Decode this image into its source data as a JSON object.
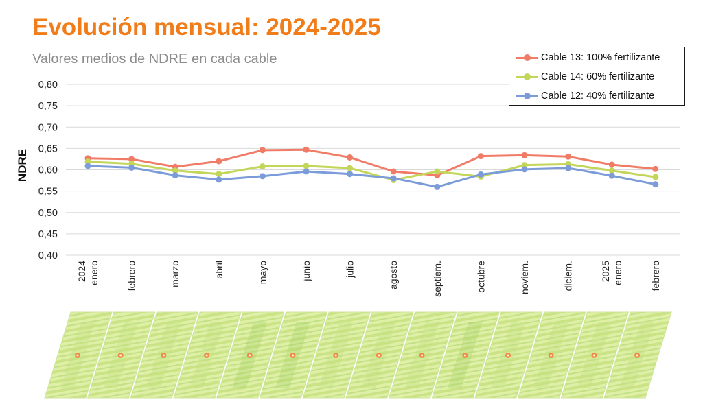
{
  "title": "Evolución mensual: 2024-2025",
  "subtitle": "Valores medios de NDRE en cada cable",
  "colors": {
    "title": "#f07d1a",
    "subtitle": "#8c8c8c",
    "gridline": "#d9d9d9",
    "field_light": "#dff0a6",
    "field_mid": "#c3e07e",
    "field_dark": "#a6d268",
    "sensor_point": "#f08a4b"
  },
  "icons": [
    "field-plot-image",
    "sensor-point-icon"
  ],
  "chart_data": {
    "type": "line",
    "ylabel": "NDRE",
    "xlabel": "",
    "ylim": [
      0.4,
      0.8
    ],
    "yticks": [
      "0,80",
      "0,75",
      "0,70",
      "0,65",
      "0,60",
      "0,55",
      "0,50",
      "0,45",
      "0,40"
    ],
    "grid": true,
    "legend_position": "top-right",
    "categories": [
      [
        "2024",
        "enero"
      ],
      [
        "febrero"
      ],
      [
        "marzo"
      ],
      [
        "abril"
      ],
      [
        "mayo"
      ],
      [
        "junio"
      ],
      [
        "julio"
      ],
      [
        "agosto"
      ],
      [
        "septiem."
      ],
      [
        "octubre"
      ],
      [
        "noviem."
      ],
      [
        "diciem."
      ],
      [
        "2025",
        "enero"
      ],
      [
        "febrero"
      ]
    ],
    "series": [
      {
        "name": "Cable 13: 100% fertilizante",
        "color": "#f07c68",
        "values": [
          0.627,
          0.625,
          0.607,
          0.62,
          0.646,
          0.647,
          0.629,
          0.596,
          0.587,
          0.632,
          0.634,
          0.631,
          0.612,
          0.602
        ]
      },
      {
        "name": "Cable 14: 60% fertilizante",
        "color": "#c3d65a",
        "values": [
          0.619,
          0.614,
          0.598,
          0.59,
          0.608,
          0.609,
          0.604,
          0.576,
          0.596,
          0.584,
          0.611,
          0.613,
          0.598,
          0.583
        ]
      },
      {
        "name": "Cable 12: 40% fertilizante",
        "color": "#7b9cd8",
        "values": [
          0.609,
          0.605,
          0.587,
          0.577,
          0.585,
          0.596,
          0.59,
          0.58,
          0.56,
          0.589,
          0.601,
          0.604,
          0.586,
          0.566
        ]
      }
    ]
  }
}
